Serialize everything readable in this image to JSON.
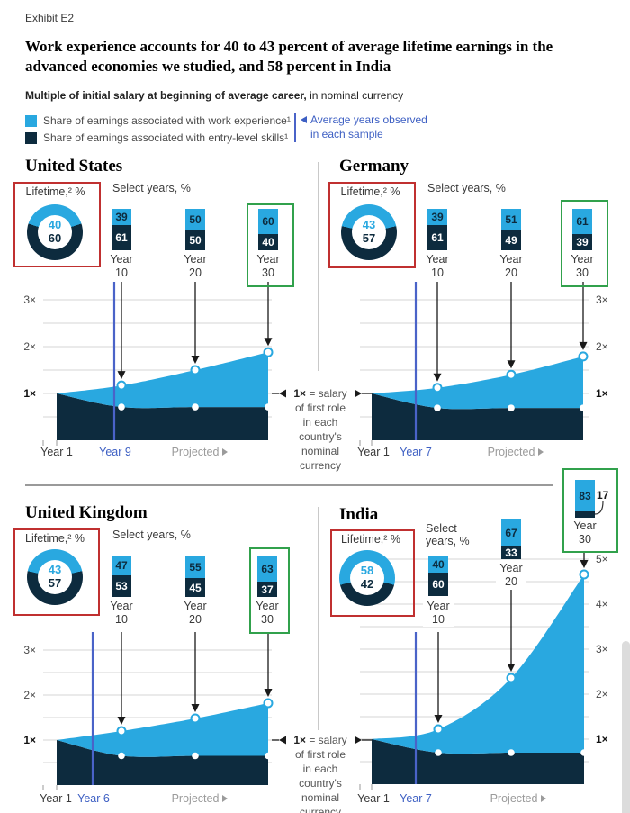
{
  "exhibit_label": "Exhibit E2",
  "title": "Work experience accounts for 40 to 43 percent of average lifetime earnings in the advanced economies we studied, and 58 percent in India",
  "subtitle_bold": "Multiple of initial salary at beginning of average career,",
  "subtitle_rest": " in nominal currency",
  "legend": {
    "work_experience": "Share of earnings associated with work experience¹",
    "entry_level": "Share of earnings associated with entry-level skills¹",
    "observed_line1": "Average years observed",
    "observed_line2": "in each sample"
  },
  "note": {
    "prefix": "1×",
    "first_line": " = salary",
    "lines": [
      "of first role",
      "in each",
      "country's",
      "nominal",
      "currency"
    ]
  },
  "colors": {
    "experience_blue": "#29A8E0",
    "skills_navy": "#0D2B3E",
    "observed_blue": "#4A63C8",
    "highlight_green": "#31A14C",
    "highlight_red": "#C03030",
    "projected_gray": "#9B9B9B",
    "gridline": "#d4d4d4"
  },
  "chart_data": [
    {
      "country": "United States",
      "type": "area",
      "lifetime_label": "Lifetime,² %",
      "lifetime": {
        "experience": 40,
        "skills": 60
      },
      "select_label": "Select years, %",
      "bars": [
        {
          "year": "Year 10",
          "experience": 39,
          "skills": 61
        },
        {
          "year": "Year 20",
          "experience": 50,
          "skills": 50
        },
        {
          "year": "Year 30",
          "experience": 60,
          "skills": 40,
          "highlighted": true
        }
      ],
      "observed_year": "Year 9",
      "x_ticks": [
        {
          "label": "Year 1",
          "style": "plain"
        },
        {
          "label": "Year 9",
          "style": "observed"
        },
        {
          "label": "Projected",
          "style": "projected",
          "arrow": true
        }
      ],
      "y_ticks": [
        "1×",
        "2×",
        "3×"
      ],
      "years": [
        1,
        10,
        20,
        30
      ],
      "total_multiple": [
        1.0,
        1.17,
        1.5,
        1.88
      ],
      "entry_level_multiple": [
        1.0,
        0.71,
        0.71,
        0.71
      ],
      "ylim": [
        0,
        3.4
      ]
    },
    {
      "country": "Germany",
      "type": "area",
      "lifetime_label": "Lifetime,² %",
      "lifetime": {
        "experience": 43,
        "skills": 57
      },
      "select_label": "Select years, %",
      "bars": [
        {
          "year": "Year 10",
          "experience": 39,
          "skills": 61
        },
        {
          "year": "Year 20",
          "experience": 51,
          "skills": 49
        },
        {
          "year": "Year 30",
          "experience": 61,
          "skills": 39,
          "highlighted": true
        }
      ],
      "observed_year": "Year 7",
      "x_ticks": [
        {
          "label": "Year 1",
          "style": "plain"
        },
        {
          "label": "Year 7",
          "style": "observed"
        },
        {
          "label": "Projected",
          "style": "projected",
          "arrow": true
        }
      ],
      "y_ticks": [
        "1×",
        "2×",
        "3×"
      ],
      "years": [
        1,
        10,
        20,
        30
      ],
      "total_multiple": [
        1.0,
        1.12,
        1.4,
        1.79
      ],
      "entry_level_multiple": [
        1.0,
        0.69,
        0.69,
        0.69
      ],
      "ylim": [
        0,
        3.4
      ]
    },
    {
      "country": "United Kingdom",
      "type": "area",
      "lifetime_label": "Lifetime,² %",
      "lifetime": {
        "experience": 43,
        "skills": 57
      },
      "select_label": "Select years, %",
      "bars": [
        {
          "year": "Year 10",
          "experience": 47,
          "skills": 53
        },
        {
          "year": "Year 20",
          "experience": 55,
          "skills": 45
        },
        {
          "year": "Year 30",
          "experience": 63,
          "skills": 37,
          "highlighted": true
        }
      ],
      "observed_year": "Year 6",
      "x_ticks": [
        {
          "label": "Year 1",
          "style": "plain"
        },
        {
          "label": "Year 6",
          "style": "observed"
        },
        {
          "label": "Projected",
          "style": "projected",
          "arrow": true
        }
      ],
      "y_ticks": [
        "1×",
        "2×",
        "3×"
      ],
      "years": [
        1,
        10,
        20,
        30
      ],
      "total_multiple": [
        1.0,
        1.2,
        1.48,
        1.82
      ],
      "entry_level_multiple": [
        1.0,
        0.65,
        0.65,
        0.65
      ],
      "ylim": [
        0,
        3.4
      ]
    },
    {
      "country": "India",
      "type": "area",
      "lifetime_label": "Lifetime,² %",
      "lifetime": {
        "experience": 58,
        "skills": 42
      },
      "select_label": "Select years, %",
      "bars": [
        {
          "year": "Year 10",
          "experience": 40,
          "skills": 60
        },
        {
          "year": "Year 20",
          "experience": 67,
          "skills": 33
        },
        {
          "year": "Year 30",
          "experience": 83,
          "skills": 17,
          "highlighted": true,
          "skills_label_outside": true
        }
      ],
      "observed_year": "Year 7",
      "x_ticks": [
        {
          "label": "Year 1",
          "style": "plain"
        },
        {
          "label": "Year 7",
          "style": "observed"
        },
        {
          "label": "Projected",
          "style": "projected",
          "arrow": true
        }
      ],
      "y_ticks": [
        "1×",
        "2×",
        "3×",
        "4×",
        "5×"
      ],
      "years": [
        1,
        10,
        20,
        30
      ],
      "total_multiple": [
        1.0,
        1.22,
        2.36,
        4.66
      ],
      "entry_level_multiple": [
        1.0,
        0.7,
        0.7,
        0.7
      ],
      "ylim": [
        0,
        5.1
      ]
    }
  ]
}
